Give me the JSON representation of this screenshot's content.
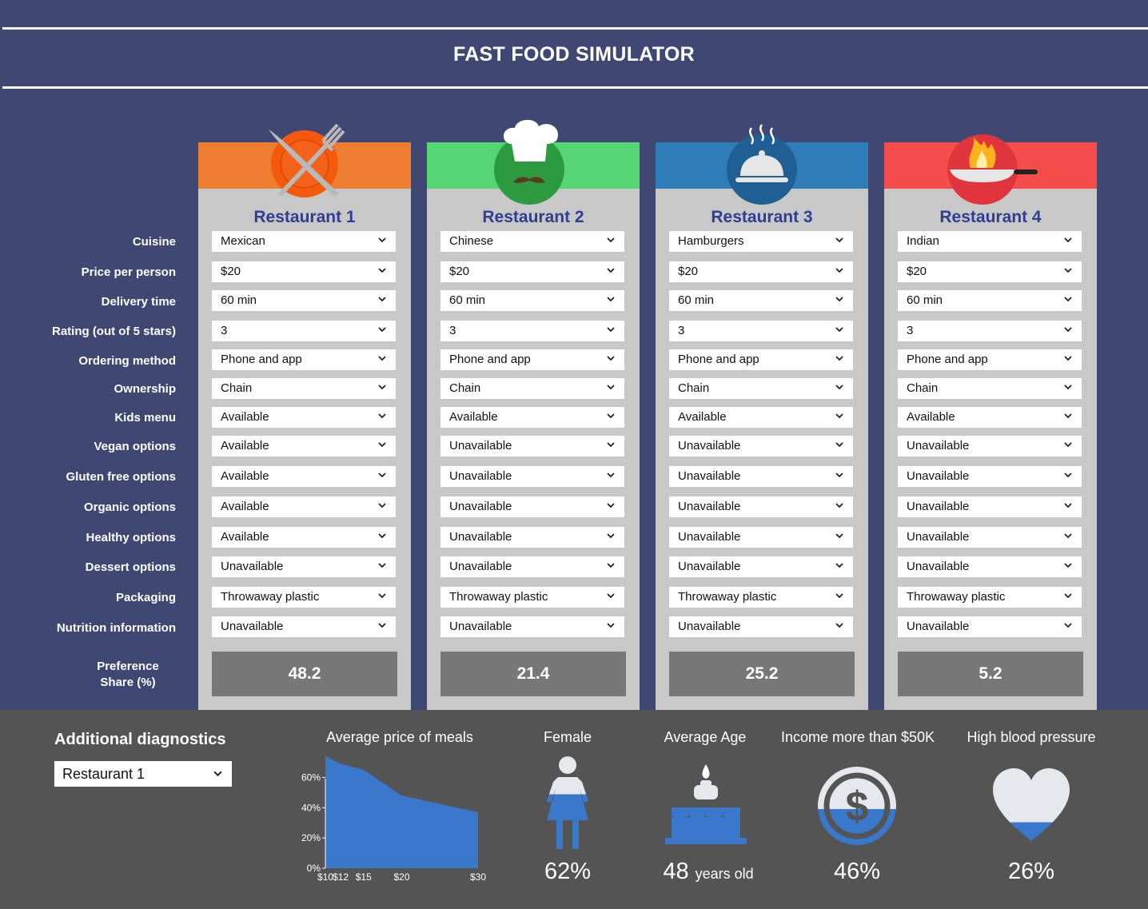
{
  "header": {
    "title": "FAST FOOD SIMULATOR"
  },
  "row_labels": [
    "Cuisine",
    "Price per person",
    "Delivery time",
    "Rating (out of 5 stars)",
    "Ordering method",
    "Ownership",
    "Kids menu",
    "Vegan options",
    "Gluten free options",
    "Organic options",
    "Healthy options",
    "Dessert options",
    "Packaging",
    "Nutrition information"
  ],
  "preference_label": {
    "line1": "Preference",
    "line2": "Share (%)"
  },
  "colors": {
    "background": "#3f4872",
    "bottom_panel": "#545454",
    "restaurant_1": "#ed7d31",
    "restaurant_2": "#55d573",
    "restaurant_3": "#2e7cb8",
    "restaurant_4": "#f54c4c",
    "chart_fill": "#3a78cc"
  },
  "restaurants": [
    {
      "name": "Restaurant 1",
      "icon": "fork-knife-plate-icon",
      "values": [
        "Mexican",
        "$20",
        "60 min",
        "3",
        "Phone and app",
        "Chain",
        "Available",
        "Available",
        "Available",
        "Available",
        "Available",
        "Unavailable",
        "Throwaway plastic",
        "Unavailable"
      ],
      "preference": "48.2"
    },
    {
      "name": "Restaurant 2",
      "icon": "chef-hat-icon",
      "values": [
        "Chinese",
        "$20",
        "60 min",
        "3",
        "Phone and app",
        "Chain",
        "Available",
        "Unavailable",
        "Unavailable",
        "Unavailable",
        "Unavailable",
        "Unavailable",
        "Throwaway plastic",
        "Unavailable"
      ],
      "preference": "21.4"
    },
    {
      "name": "Restaurant 3",
      "icon": "food-cloche-icon",
      "values": [
        "Hamburgers",
        "$20",
        "60 min",
        "3",
        "Phone and app",
        "Chain",
        "Available",
        "Unavailable",
        "Unavailable",
        "Unavailable",
        "Unavailable",
        "Unavailable",
        "Throwaway plastic",
        "Unavailable"
      ],
      "preference": "25.2"
    },
    {
      "name": "Restaurant 4",
      "icon": "flaming-pan-icon",
      "values": [
        "Indian",
        "$20",
        "60 min",
        "3",
        "Phone and app",
        "Chain",
        "Available",
        "Unavailable",
        "Unavailable",
        "Unavailable",
        "Unavailable",
        "Unavailable",
        "Throwaway plastic",
        "Unavailable"
      ],
      "preference": "5.2"
    }
  ],
  "diagnostics": {
    "title": "Additional diagnostics",
    "selected": "Restaurant 1",
    "stats": [
      {
        "title": "Female",
        "value": "62%",
        "icon": "female-person-icon",
        "fill_fraction": 0.62
      },
      {
        "title": "Average Age",
        "value": "48",
        "unit": "years old",
        "icon": "birthday-cake-icon"
      },
      {
        "title": "Income more than $50K",
        "value": "46%",
        "icon": "dollar-coin-icon",
        "fill_fraction": 0.46
      },
      {
        "title": "High blood pressure",
        "value": "26%",
        "icon": "heart-icon",
        "fill_fraction": 0.26
      }
    ]
  },
  "chart_data": {
    "type": "area",
    "title": "Average price of meals",
    "x": [
      10,
      12,
      15,
      20,
      30
    ],
    "x_tick_labels": [
      "$10",
      "$12",
      "$15",
      "$20",
      "$30"
    ],
    "x_range": [
      10,
      30
    ],
    "y_tick_labels": [
      "0%",
      "20%",
      "40%",
      "60%"
    ],
    "y_ticks": [
      0,
      20,
      40,
      60
    ],
    "ylim": [
      0,
      75
    ],
    "series": [
      {
        "values": [
          74,
          69,
          65,
          48,
          37
        ]
      }
    ],
    "grid": false,
    "legend": "none"
  }
}
